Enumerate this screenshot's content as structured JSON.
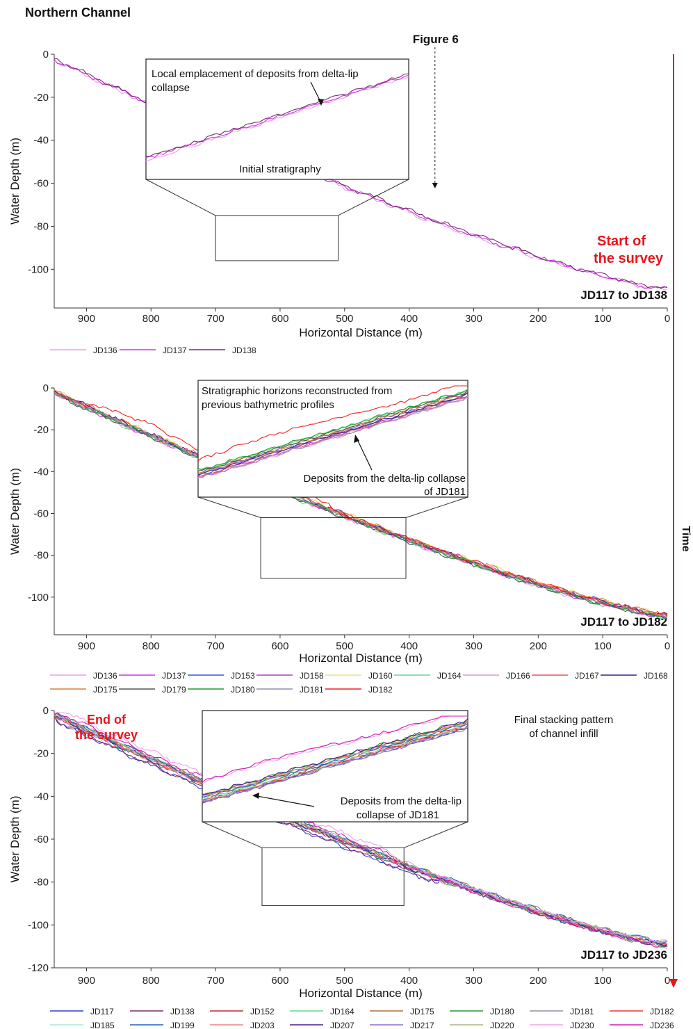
{
  "figure": {
    "title": "Northern Channel",
    "time_label": "Time",
    "time_arrow_color": "#e8141b",
    "accent_red": "#e8141b"
  },
  "chart_data": [
    {
      "type": "line",
      "xlabel": "Horizontal Distance (m)",
      "ylabel": "Water Depth (m)",
      "xlim": [
        950,
        0
      ],
      "ylim": [
        -118,
        0
      ],
      "x_ticks": [
        900,
        800,
        700,
        600,
        500,
        400,
        300,
        200,
        100,
        0
      ],
      "y_ticks": [
        0,
        -20,
        -40,
        -60,
        -80,
        -100
      ],
      "range_label": "JD117 to JD138",
      "side_label": [
        "Start of",
        "the survey"
      ],
      "figure_ref": "Figure 6",
      "figure_ref_x": 360,
      "inset": {
        "region": {
          "x": [
            700,
            510
          ],
          "y": [
            -75,
            -96
          ]
        },
        "texts": [
          "Local emplacement of deposits from delta-lip",
          "collapse",
          "Initial stratigraphy"
        ]
      },
      "series": [
        {
          "name": "JD136",
          "color": "#f29af0"
        },
        {
          "name": "JD137",
          "color": "#cc33e6"
        },
        {
          "name": "JD138",
          "color": "#7a2a6e"
        }
      ]
    },
    {
      "type": "line",
      "xlabel": "Horizontal Distance (m)",
      "ylabel": "Water Depth (m)",
      "xlim": [
        950,
        0
      ],
      "ylim": [
        -118,
        0
      ],
      "x_ticks": [
        900,
        800,
        700,
        600,
        500,
        400,
        300,
        200,
        100,
        0
      ],
      "y_ticks": [
        0,
        -20,
        -40,
        -60,
        -80,
        -100
      ],
      "range_label": "JD117 to JD182",
      "inset": {
        "region": {
          "x": [
            630,
            405
          ],
          "y": [
            -62,
            -91
          ]
        },
        "texts": [
          "Stratigraphic horizons reconstructed from",
          "previous bathymetric profiles",
          "Deposits from the delta-lip collapse",
          "of JD181"
        ]
      },
      "series": [
        {
          "name": "JD136",
          "color": "#f29af0"
        },
        {
          "name": "JD137",
          "color": "#cc33e6"
        },
        {
          "name": "JD153",
          "color": "#2a5fd6"
        },
        {
          "name": "JD158",
          "color": "#b23fc0"
        },
        {
          "name": "JD160",
          "color": "#e8e07a"
        },
        {
          "name": "JD164",
          "color": "#5fdc8c"
        },
        {
          "name": "JD166",
          "color": "#d99ac0"
        },
        {
          "name": "JD167",
          "color": "#e8505c"
        },
        {
          "name": "JD168",
          "color": "#3b1f8a"
        },
        {
          "name": "JD175",
          "color": "#d9803a"
        },
        {
          "name": "JD179",
          "color": "#555555"
        },
        {
          "name": "JD180",
          "color": "#1f9a2e"
        },
        {
          "name": "JD181",
          "color": "#9a8ab0"
        },
        {
          "name": "JD182",
          "color": "#ee2222"
        }
      ]
    },
    {
      "type": "line",
      "xlabel": "Horizontal Distance (m)",
      "ylabel": "Water Depth (m)",
      "xlim": [
        950,
        0
      ],
      "ylim": [
        -120,
        0
      ],
      "x_ticks": [
        900,
        800,
        700,
        600,
        500,
        400,
        300,
        200,
        100,
        0
      ],
      "y_ticks": [
        0,
        -20,
        -40,
        -60,
        -80,
        -100,
        -120
      ],
      "range_label": "JD117 to JD236",
      "side_label": [
        "End of",
        "the survey"
      ],
      "annotation": [
        "Final stacking pattern",
        "of channel infill"
      ],
      "inset": {
        "region": {
          "x": [
            628,
            408
          ],
          "y": [
            -64,
            -91
          ]
        },
        "texts": [
          "Deposits from the delta-lip",
          "collapse  of JD181"
        ]
      },
      "series": [
        {
          "name": "JD117",
          "color": "#2a3fd6"
        },
        {
          "name": "JD138",
          "color": "#7a2a6e"
        },
        {
          "name": "JD152",
          "color": "#c0282d"
        },
        {
          "name": "JD164",
          "color": "#5fdc8c"
        },
        {
          "name": "JD175",
          "color": "#a8743a"
        },
        {
          "name": "JD180",
          "color": "#1f9a2e"
        },
        {
          "name": "JD181",
          "color": "#9a8ab0"
        },
        {
          "name": "JD182",
          "color": "#ee3333"
        },
        {
          "name": "JD185",
          "color": "#a8e8d0"
        },
        {
          "name": "JD199",
          "color": "#2060c0"
        },
        {
          "name": "JD203",
          "color": "#ee8080"
        },
        {
          "name": "JD207",
          "color": "#4a1a8a"
        },
        {
          "name": "JD217",
          "color": "#8a6ad0"
        },
        {
          "name": "JD220",
          "color": "#b0b080"
        },
        {
          "name": "JD230",
          "color": "#f0a0f0"
        },
        {
          "name": "JD236",
          "color": "#d01ab0"
        }
      ]
    }
  ]
}
